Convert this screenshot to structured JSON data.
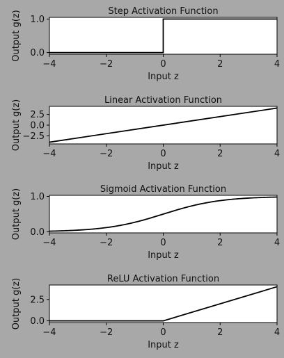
{
  "chart_data": [
    {
      "type": "line",
      "title": "Step Activation Function",
      "xlabel": "Input z",
      "ylabel": "Output g(z)",
      "xlim": [
        -4,
        4
      ],
      "ylim": [
        -0.05,
        1.05
      ],
      "xticks": [
        -4,
        -2,
        0,
        2,
        4
      ],
      "yticks": [
        0,
        1
      ],
      "ytick_labels": [
        "0.0",
        "1.0"
      ],
      "function": "step",
      "series": [
        {
          "x": [
            -4,
            0,
            0,
            4
          ],
          "y": [
            0,
            0,
            1,
            1
          ]
        }
      ]
    },
    {
      "type": "line",
      "title": "Linear Activation Function",
      "xlabel": "Input z",
      "ylabel": "Output g(z)",
      "xlim": [
        -4,
        4
      ],
      "ylim": [
        -4.4,
        4.4
      ],
      "xticks": [
        -4,
        -2,
        0,
        2,
        4
      ],
      "yticks": [
        2.5,
        0,
        -2.5
      ],
      "ytick_labels": [
        "2.5",
        "0.0",
        "-2.5"
      ],
      "function": "linear",
      "series": [
        {
          "x": [
            -4,
            4
          ],
          "y": [
            -4,
            4
          ]
        }
      ]
    },
    {
      "type": "line",
      "title": "Sigmoid Activation Function",
      "xlabel": "Input z",
      "ylabel": "Output g(z)",
      "xlim": [
        -4,
        4
      ],
      "ylim": [
        -0.03,
        1.03
      ],
      "xticks": [
        -4,
        -2,
        0,
        2,
        4
      ],
      "yticks": [
        0,
        1
      ],
      "ytick_labels": [
        "0.0",
        "1.0"
      ],
      "function": "sigmoid",
      "series": [
        {
          "x": [
            -4,
            -3,
            -2,
            -1,
            0,
            1,
            2,
            3,
            4
          ],
          "y": [
            0.018,
            0.047,
            0.119,
            0.269,
            0.5,
            0.731,
            0.881,
            0.953,
            0.982
          ]
        }
      ]
    },
    {
      "type": "line",
      "title": "ReLU Activation Function",
      "xlabel": "Input z",
      "ylabel": "Output g(z)",
      "xlim": [
        -4,
        4
      ],
      "ylim": [
        -0.2,
        4.2
      ],
      "xticks": [
        -4,
        -2,
        0,
        2,
        4
      ],
      "yticks": [
        0,
        2.5
      ],
      "ytick_labels": [
        "0.0",
        "2.5"
      ],
      "function": "relu",
      "series": [
        {
          "x": [
            -4,
            0,
            4
          ],
          "y": [
            0,
            0,
            4
          ]
        }
      ]
    }
  ]
}
